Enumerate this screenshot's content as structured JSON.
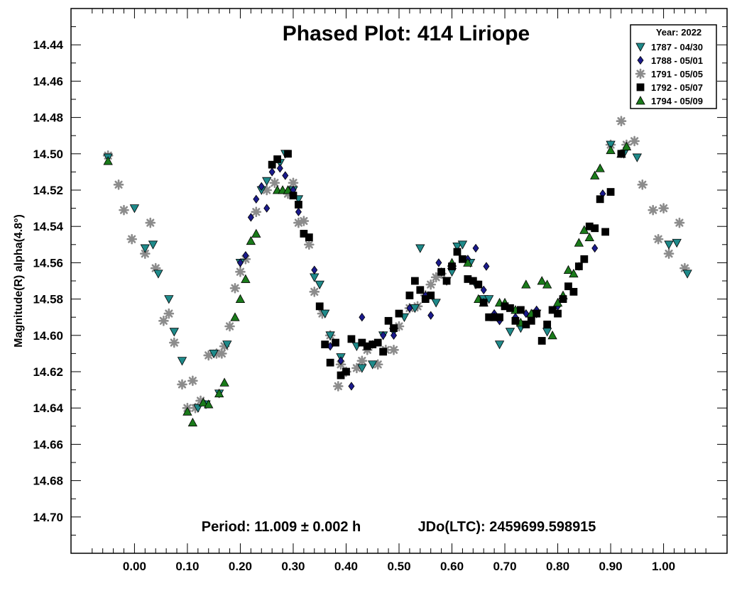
{
  "chart_data": {
    "type": "scatter",
    "title": "Phased Plot: 414 Liriope",
    "xlabel": "",
    "ylabel": "Magnitude(R) alpha(4.8°)",
    "xlim": [
      -0.12,
      1.12
    ],
    "ylim": [
      14.42,
      14.72
    ],
    "y_inverted": true,
    "grid": false,
    "x_ticks": [
      0.0,
      0.1,
      0.2,
      0.3,
      0.4,
      0.5,
      0.6,
      0.7,
      0.8,
      0.9,
      1.0
    ],
    "x_tick_labels": [
      "0.00",
      "0.10",
      "0.20",
      "0.30",
      "0.40",
      "0.50",
      "0.60",
      "0.70",
      "0.80",
      "0.90",
      "1.00"
    ],
    "y_ticks": [
      14.44,
      14.46,
      14.48,
      14.5,
      14.52,
      14.54,
      14.56,
      14.58,
      14.6,
      14.62,
      14.64,
      14.66,
      14.68,
      14.7
    ],
    "y_tick_labels": [
      "14.44",
      "14.46",
      "14.48",
      "14.50",
      "14.52",
      "14.54",
      "14.56",
      "14.58",
      "14.60",
      "14.62",
      "14.64",
      "14.66",
      "14.68",
      "14.70"
    ],
    "legend": {
      "title": "Year: 2022",
      "position": "top-right"
    },
    "annotations": {
      "period": "Period: 11.009 ± 0.002 h",
      "jdo": "JDo(LTC): 2459699.598915"
    },
    "series": [
      {
        "name": "1787 - 04/30",
        "marker": "triangle-down",
        "color": "#1f8a8a",
        "points": [
          [
            -0.05,
            14.502
          ],
          [
            0.0,
            14.53
          ],
          [
            0.02,
            14.552
          ],
          [
            0.035,
            14.55
          ],
          [
            0.045,
            14.566
          ],
          [
            0.065,
            14.58
          ],
          [
            0.075,
            14.598
          ],
          [
            0.09,
            14.614
          ],
          [
            0.12,
            14.64
          ],
          [
            0.135,
            14.638
          ],
          [
            0.15,
            14.61
          ],
          [
            0.16,
            14.632
          ],
          [
            0.175,
            14.605
          ],
          [
            0.2,
            14.56
          ],
          [
            0.24,
            14.52
          ],
          [
            0.25,
            14.515
          ],
          [
            0.275,
            14.505
          ],
          [
            0.285,
            14.5
          ],
          [
            0.3,
            14.52
          ],
          [
            0.31,
            14.525
          ],
          [
            0.34,
            14.568
          ],
          [
            0.35,
            14.572
          ],
          [
            0.36,
            14.588
          ],
          [
            0.37,
            14.6
          ],
          [
            0.39,
            14.612
          ],
          [
            0.42,
            14.606
          ],
          [
            0.43,
            14.618
          ],
          [
            0.45,
            14.616
          ],
          [
            0.47,
            14.6
          ],
          [
            0.49,
            14.598
          ],
          [
            0.51,
            14.59
          ],
          [
            0.53,
            14.585
          ],
          [
            0.54,
            14.552
          ],
          [
            0.57,
            14.582
          ],
          [
            0.59,
            14.57
          ],
          [
            0.6,
            14.565
          ],
          [
            0.61,
            14.551
          ],
          [
            0.62,
            14.55
          ],
          [
            0.635,
            14.56
          ],
          [
            0.645,
            14.572
          ],
          [
            0.66,
            14.58
          ],
          [
            0.67,
            14.58
          ],
          [
            0.69,
            14.605
          ],
          [
            0.71,
            14.598
          ],
          [
            0.73,
            14.596
          ],
          [
            0.76,
            14.588
          ],
          [
            0.78,
            14.598
          ],
          [
            0.9,
            14.495
          ],
          [
            0.925,
            14.5
          ],
          [
            0.95,
            14.502
          ],
          [
            1.01,
            14.55
          ],
          [
            1.025,
            14.549
          ],
          [
            1.045,
            14.566
          ]
        ]
      },
      {
        "name": "1788 - 05/01",
        "marker": "diamond",
        "color": "#1a1a8c",
        "points": [
          [
            0.2,
            14.56
          ],
          [
            0.21,
            14.556
          ],
          [
            0.22,
            14.535
          ],
          [
            0.23,
            14.525
          ],
          [
            0.24,
            14.518
          ],
          [
            0.25,
            14.53
          ],
          [
            0.26,
            14.51
          ],
          [
            0.275,
            14.508
          ],
          [
            0.285,
            14.512
          ],
          [
            0.3,
            14.52
          ],
          [
            0.31,
            14.532
          ],
          [
            0.34,
            14.564
          ],
          [
            0.37,
            14.606
          ],
          [
            0.39,
            14.614
          ],
          [
            0.41,
            14.628
          ],
          [
            0.43,
            14.59
          ],
          [
            0.45,
            14.605
          ],
          [
            0.47,
            14.6
          ],
          [
            0.49,
            14.6
          ],
          [
            0.52,
            14.585
          ],
          [
            0.55,
            14.578
          ],
          [
            0.56,
            14.589
          ],
          [
            0.575,
            14.56
          ],
          [
            0.58,
            14.565
          ],
          [
            0.63,
            14.558
          ],
          [
            0.645,
            14.552
          ],
          [
            0.66,
            14.575
          ],
          [
            0.665,
            14.562
          ],
          [
            0.68,
            14.588
          ],
          [
            0.69,
            14.592
          ],
          [
            0.72,
            14.59
          ],
          [
            0.74,
            14.588
          ],
          [
            0.76,
            14.586
          ],
          [
            0.8,
            14.584
          ],
          [
            0.84,
            14.562
          ],
          [
            0.87,
            14.552
          ],
          [
            0.885,
            14.522
          ],
          [
            0.92,
            14.5
          ]
        ]
      },
      {
        "name": "1791 - 05/05",
        "marker": "asterisk",
        "color": "#8c8c8c",
        "points": [
          [
            -0.05,
            14.501
          ],
          [
            -0.03,
            14.517
          ],
          [
            -0.02,
            14.531
          ],
          [
            -0.005,
            14.547
          ],
          [
            0.02,
            14.555
          ],
          [
            0.03,
            14.538
          ],
          [
            0.04,
            14.563
          ],
          [
            0.055,
            14.592
          ],
          [
            0.065,
            14.588
          ],
          [
            0.075,
            14.604
          ],
          [
            0.09,
            14.627
          ],
          [
            0.1,
            14.64
          ],
          [
            0.11,
            14.625
          ],
          [
            0.115,
            14.64
          ],
          [
            0.125,
            14.636
          ],
          [
            0.14,
            14.611
          ],
          [
            0.155,
            14.61
          ],
          [
            0.165,
            14.61
          ],
          [
            0.17,
            14.606
          ],
          [
            0.18,
            14.595
          ],
          [
            0.19,
            14.574
          ],
          [
            0.2,
            14.565
          ],
          [
            0.21,
            14.558
          ],
          [
            0.23,
            14.532
          ],
          [
            0.25,
            14.52
          ],
          [
            0.265,
            14.516
          ],
          [
            0.29,
            14.522
          ],
          [
            0.3,
            14.516
          ],
          [
            0.31,
            14.538
          ],
          [
            0.32,
            14.537
          ],
          [
            0.33,
            14.55
          ],
          [
            0.34,
            14.576
          ],
          [
            0.355,
            14.588
          ],
          [
            0.37,
            14.6
          ],
          [
            0.385,
            14.628
          ],
          [
            0.39,
            14.616
          ],
          [
            0.4,
            14.62
          ],
          [
            0.42,
            14.618
          ],
          [
            0.43,
            14.614
          ],
          [
            0.44,
            14.608
          ],
          [
            0.46,
            14.616
          ],
          [
            0.475,
            14.608
          ],
          [
            0.49,
            14.608
          ],
          [
            0.5,
            14.595
          ],
          [
            0.52,
            14.585
          ],
          [
            0.535,
            14.584
          ],
          [
            0.55,
            14.578
          ],
          [
            0.56,
            14.572
          ],
          [
            0.57,
            14.568
          ],
          [
            0.58,
            14.566
          ],
          [
            0.9,
            14.495
          ],
          [
            0.92,
            14.482
          ],
          [
            0.93,
            14.495
          ],
          [
            0.945,
            14.493
          ],
          [
            0.96,
            14.517
          ],
          [
            0.98,
            14.531
          ],
          [
            0.99,
            14.547
          ],
          [
            1.0,
            14.53
          ],
          [
            1.01,
            14.555
          ],
          [
            1.03,
            14.538
          ],
          [
            1.04,
            14.563
          ]
        ]
      },
      {
        "name": "1792 - 05/07",
        "marker": "square",
        "color": "#000000",
        "points": [
          [
            0.26,
            14.506
          ],
          [
            0.27,
            14.503
          ],
          [
            0.29,
            14.5
          ],
          [
            0.3,
            14.523
          ],
          [
            0.31,
            14.528
          ],
          [
            0.32,
            14.544
          ],
          [
            0.33,
            14.546
          ],
          [
            0.35,
            14.584
          ],
          [
            0.36,
            14.605
          ],
          [
            0.37,
            14.615
          ],
          [
            0.38,
            14.604
          ],
          [
            0.39,
            14.622
          ],
          [
            0.4,
            14.62
          ],
          [
            0.41,
            14.602
          ],
          [
            0.43,
            14.604
          ],
          [
            0.44,
            14.606
          ],
          [
            0.45,
            14.605
          ],
          [
            0.46,
            14.604
          ],
          [
            0.47,
            14.609
          ],
          [
            0.48,
            14.592
          ],
          [
            0.49,
            14.596
          ],
          [
            0.5,
            14.588
          ],
          [
            0.52,
            14.578
          ],
          [
            0.53,
            14.57
          ],
          [
            0.54,
            14.575
          ],
          [
            0.55,
            14.58
          ],
          [
            0.56,
            14.578
          ],
          [
            0.58,
            14.565
          ],
          [
            0.59,
            14.57
          ],
          [
            0.6,
            14.562
          ],
          [
            0.61,
            14.554
          ],
          [
            0.62,
            14.558
          ],
          [
            0.63,
            14.569
          ],
          [
            0.64,
            14.57
          ],
          [
            0.65,
            14.572
          ],
          [
            0.66,
            14.582
          ],
          [
            0.67,
            14.59
          ],
          [
            0.68,
            14.59
          ],
          [
            0.69,
            14.59
          ],
          [
            0.7,
            14.584
          ],
          [
            0.71,
            14.585
          ],
          [
            0.72,
            14.592
          ],
          [
            0.73,
            14.586
          ],
          [
            0.74,
            14.594
          ],
          [
            0.75,
            14.592
          ],
          [
            0.76,
            14.588
          ],
          [
            0.77,
            14.603
          ],
          [
            0.78,
            14.594
          ],
          [
            0.79,
            14.586
          ],
          [
            0.8,
            14.588
          ],
          [
            0.81,
            14.58
          ],
          [
            0.82,
            14.573
          ],
          [
            0.83,
            14.576
          ],
          [
            0.84,
            14.562
          ],
          [
            0.85,
            14.558
          ],
          [
            0.86,
            14.54
          ],
          [
            0.87,
            14.541
          ],
          [
            0.88,
            14.525
          ],
          [
            0.89,
            14.543
          ],
          [
            0.9,
            14.521
          ],
          [
            0.92,
            14.5
          ]
        ]
      },
      {
        "name": "1794 - 05/09",
        "marker": "triangle-up",
        "color": "#1a7a1a",
        "points": [
          [
            -0.05,
            14.504
          ],
          [
            0.1,
            14.642
          ],
          [
            0.11,
            14.648
          ],
          [
            0.13,
            14.637
          ],
          [
            0.14,
            14.638
          ],
          [
            0.16,
            14.632
          ],
          [
            0.17,
            14.626
          ],
          [
            0.19,
            14.59
          ],
          [
            0.2,
            14.58
          ],
          [
            0.21,
            14.569
          ],
          [
            0.22,
            14.548
          ],
          [
            0.23,
            14.544
          ],
          [
            0.27,
            14.52
          ],
          [
            0.28,
            14.52
          ],
          [
            0.29,
            14.52
          ],
          [
            0.6,
            14.56
          ],
          [
            0.63,
            14.56
          ],
          [
            0.65,
            14.58
          ],
          [
            0.66,
            14.582
          ],
          [
            0.68,
            14.59
          ],
          [
            0.69,
            14.582
          ],
          [
            0.7,
            14.582
          ],
          [
            0.72,
            14.586
          ],
          [
            0.73,
            14.593
          ],
          [
            0.74,
            14.572
          ],
          [
            0.75,
            14.588
          ],
          [
            0.77,
            14.57
          ],
          [
            0.78,
            14.572
          ],
          [
            0.79,
            14.6
          ],
          [
            0.8,
            14.582
          ],
          [
            0.81,
            14.578
          ],
          [
            0.82,
            14.564
          ],
          [
            0.83,
            14.566
          ],
          [
            0.84,
            14.549
          ],
          [
            0.85,
            14.542
          ],
          [
            0.86,
            14.546
          ],
          [
            0.87,
            14.512
          ],
          [
            0.88,
            14.508
          ],
          [
            0.9,
            14.498
          ],
          [
            0.92,
            14.5
          ],
          [
            0.93,
            14.496
          ]
        ]
      }
    ]
  }
}
